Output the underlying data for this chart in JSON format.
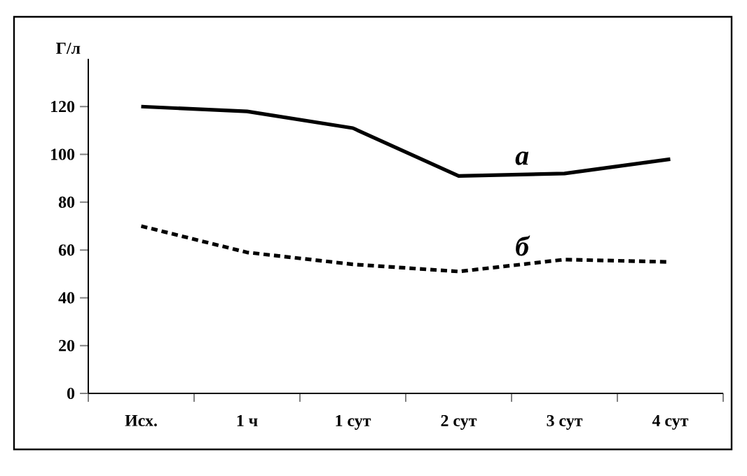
{
  "chart_data": {
    "type": "line",
    "ylabel": "Г/л",
    "categories": [
      "Исх.",
      "1 ч",
      "1 сут",
      "2 сут",
      "3 сут",
      "4 сут"
    ],
    "series": [
      {
        "name": "а",
        "color": "#000000",
        "line_style": "solid",
        "values": [
          120,
          118,
          111,
          91,
          92,
          98
        ]
      },
      {
        "name": "б",
        "color": "#000000",
        "line_style": "dashed",
        "values": [
          70,
          59,
          54,
          51,
          56,
          55
        ]
      }
    ],
    "ylim": [
      0,
      140
    ],
    "yticks": [
      0,
      20,
      40,
      60,
      80,
      100,
      120
    ],
    "legend": false,
    "grid": false,
    "marker": "none"
  }
}
